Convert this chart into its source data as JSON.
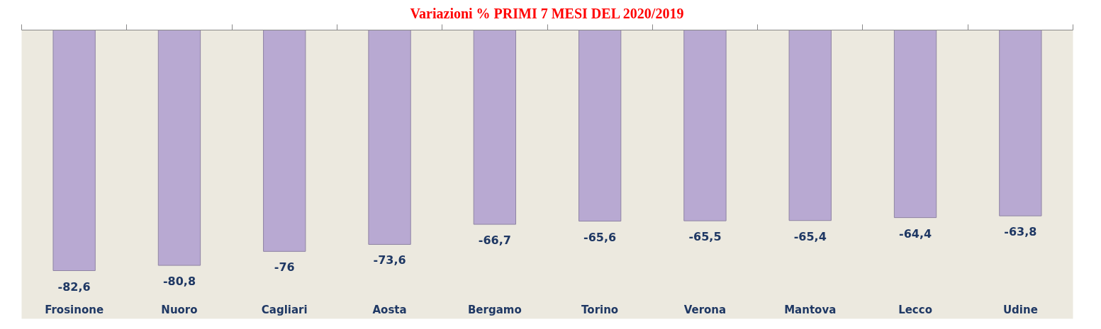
{
  "chart_data": {
    "type": "bar",
    "title": "Variazioni % PRIMI 7 MESI DEL 2020/2019",
    "categories": [
      "Frosinone",
      "Nuoro",
      "Cagliari",
      "Aosta",
      "Bergamo",
      "Torino",
      "Verona",
      "Mantova",
      "Lecco",
      "Udine"
    ],
    "values": [
      -82.6,
      -80.8,
      -76,
      -73.6,
      -66.7,
      -65.6,
      -65.5,
      -65.4,
      -64.4,
      -63.8
    ],
    "value_labels": [
      "-82,6",
      "-80,8",
      "-76",
      "-73,6",
      "-66,7",
      "-65,6",
      "-65,5",
      "-65,4",
      "-64,4",
      "-63,8"
    ],
    "color": "#b8a9d2",
    "grid": false
  }
}
